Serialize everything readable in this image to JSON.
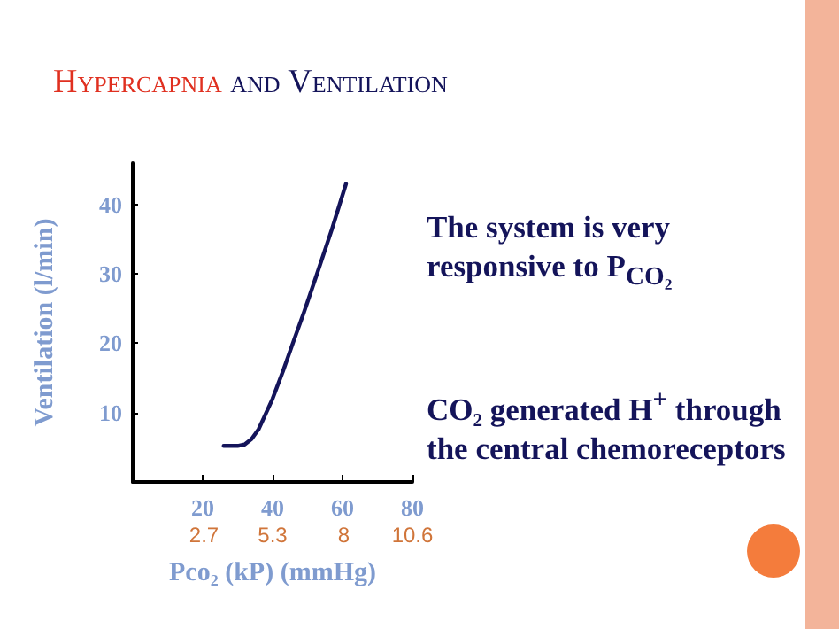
{
  "chart_data": {
    "type": "line",
    "title": "Hypercapnia and Ventilation",
    "xlabel": "Pco₂ (kP) (mmHg)",
    "ylabel": "Ventilation (l/min)",
    "x": [
      26,
      30,
      32,
      34,
      36,
      38,
      40,
      43,
      46,
      49,
      52.7,
      57,
      61
    ],
    "series": [
      {
        "color": "#14145a",
        "values": [
          5.2,
          5.2,
          5.4,
          6.2,
          7.6,
          9.8,
          12,
          16,
          20.3,
          24.5,
          30,
          36.5,
          43
        ]
      }
    ],
    "xlim": [
      0,
      80
    ],
    "xticks": [
      20,
      40,
      60,
      80
    ],
    "x2lim": [
      0,
      10.6
    ],
    "x2ticks": [
      2.7,
      5.3,
      8,
      10.6
    ],
    "ylim": [
      0,
      46
    ],
    "yticks": [
      10,
      20,
      30,
      40
    ],
    "grid": false,
    "marker": "none",
    "line_style": "solid",
    "annotations": [
      "The system is very responsive to P$_{CO₂}$",
      "CO₂ generated H$^{+}$ through the central chemoreceptors"
    ]
  }
}
